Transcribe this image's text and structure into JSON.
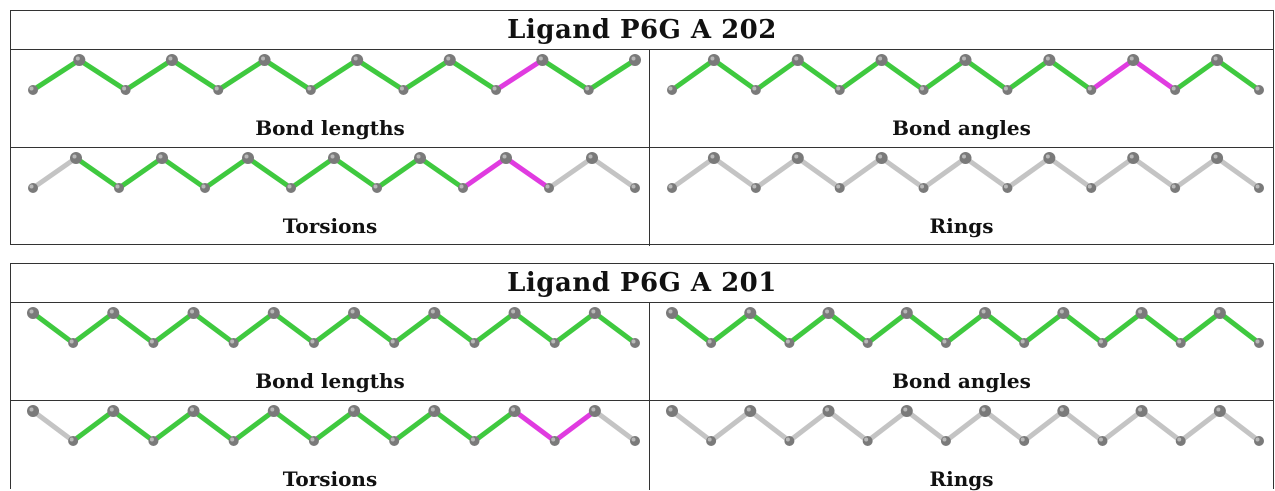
{
  "panels": [
    {
      "title": "Ligand P6G A 202",
      "cells": [
        {
          "label": "Bond lengths",
          "bonds": [
            "g",
            "g",
            "g",
            "g",
            "g",
            "g",
            "g",
            "g",
            "g",
            "g",
            "m",
            "g",
            "g"
          ]
        },
        {
          "label": "Bond angles",
          "bonds": [
            "g",
            "g",
            "g",
            "g",
            "g",
            "g",
            "g",
            "g",
            "g",
            "g",
            "m",
            "m",
            "g",
            "g"
          ]
        },
        {
          "label": "Torsions",
          "bonds": [
            "n",
            "g",
            "g",
            "g",
            "g",
            "g",
            "g",
            "g",
            "g",
            "g",
            "m",
            "m",
            "n",
            "n"
          ]
        },
        {
          "label": "Rings",
          "bonds": [
            "n",
            "n",
            "n",
            "n",
            "n",
            "n",
            "n",
            "n",
            "n",
            "n",
            "n",
            "n",
            "n",
            "n"
          ]
        }
      ]
    },
    {
      "title": "Ligand P6G A 201",
      "cells": [
        {
          "label": "Bond lengths",
          "bonds": [
            "g",
            "g",
            "g",
            "g",
            "g",
            "g",
            "g",
            "g",
            "g",
            "g",
            "g",
            "g",
            "g",
            "g",
            "g"
          ]
        },
        {
          "label": "Bond angles",
          "bonds": [
            "g",
            "g",
            "g",
            "g",
            "g",
            "g",
            "g",
            "g",
            "g",
            "g",
            "g",
            "g",
            "g",
            "g",
            "g"
          ]
        },
        {
          "label": "Torsions",
          "bonds": [
            "n",
            "g",
            "g",
            "g",
            "g",
            "g",
            "g",
            "g",
            "g",
            "g",
            "g",
            "g",
            "m",
            "m",
            "n"
          ]
        },
        {
          "label": "Rings",
          "bonds": [
            "n",
            "n",
            "n",
            "n",
            "n",
            "n",
            "n",
            "n",
            "n",
            "n",
            "n",
            "n",
            "n",
            "n",
            "n"
          ]
        }
      ]
    }
  ],
  "colors": {
    "g": "#3fc93f",
    "m": "#e03be0",
    "n": "#c4c4c4",
    "atom": "#7a7a7a"
  }
}
